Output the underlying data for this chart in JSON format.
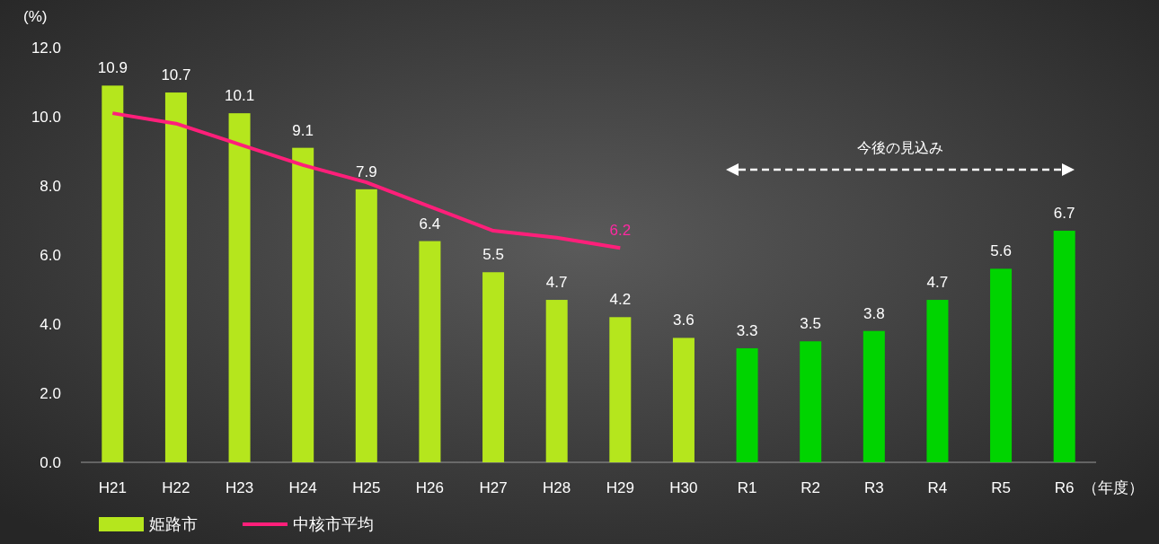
{
  "chart_data": {
    "type": "bar",
    "ylabel": "(%)",
    "xlabel": "（年度）",
    "categories": [
      "H21",
      "H22",
      "H23",
      "H24",
      "H25",
      "H26",
      "H27",
      "H28",
      "H29",
      "H30",
      "R1",
      "R2",
      "R3",
      "R4",
      "R5",
      "R6"
    ],
    "series": [
      {
        "name": "姫路市",
        "color": "#b5e61d",
        "colors": [
          "#b5e61d",
          "#b5e61d",
          "#b5e61d",
          "#b5e61d",
          "#b5e61d",
          "#b5e61d",
          "#b5e61d",
          "#b5e61d",
          "#b5e61d",
          "#b5e61d",
          "#00d400",
          "#00d400",
          "#00d400",
          "#00d400",
          "#00d400",
          "#00d400"
        ],
        "values": [
          10.9,
          10.7,
          10.1,
          9.1,
          7.9,
          6.4,
          5.5,
          4.7,
          4.2,
          3.6,
          3.3,
          3.5,
          3.8,
          4.7,
          5.6,
          6.7
        ],
        "value_labels": [
          "10.9",
          "10.7",
          "10.1",
          "9.1",
          "7.9",
          "6.4",
          "5.5",
          "4.7",
          "4.2",
          "3.6",
          "3.3",
          "3.5",
          "3.8",
          "4.7",
          "5.6",
          "6.7"
        ]
      },
      {
        "name": "中核市平均",
        "type": "line",
        "color": "#ff1f7a",
        "values": [
          10.1,
          9.8,
          9.2,
          8.6,
          8.1,
          7.4,
          6.7,
          6.5,
          6.2,
          null,
          null,
          null,
          null,
          null,
          null,
          null
        ],
        "value_labels": [
          null,
          null,
          null,
          null,
          null,
          null,
          null,
          null,
          "6.2",
          null,
          null,
          null,
          null,
          null,
          null,
          null
        ]
      }
    ],
    "ylim": [
      0,
      12
    ],
    "yticks": [
      {
        "value": 0,
        "label": "0.0"
      },
      {
        "value": 2,
        "label": "2.0"
      },
      {
        "value": 4,
        "label": "4.0"
      },
      {
        "value": 6,
        "label": "6.0"
      },
      {
        "value": 8,
        "label": "8.0"
      },
      {
        "value": 10,
        "label": "10.0"
      },
      {
        "value": 12,
        "label": "12.0"
      }
    ],
    "annotations": [
      "今後の見込み"
    ],
    "legend": "bottom left",
    "grid": false,
    "marker": "none",
    "line_style": "solid"
  }
}
